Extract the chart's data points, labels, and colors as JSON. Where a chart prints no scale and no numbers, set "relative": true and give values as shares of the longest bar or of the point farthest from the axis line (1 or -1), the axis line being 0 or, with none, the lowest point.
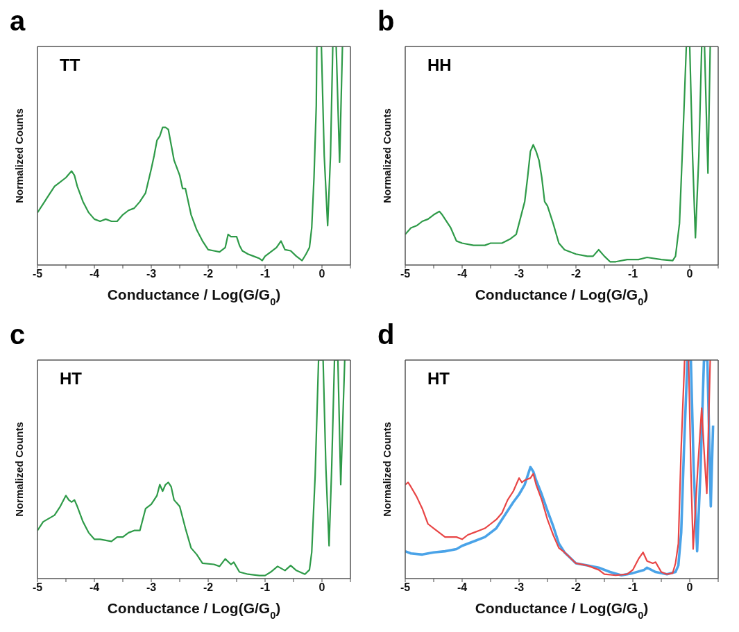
{
  "chart_data": [
    {
      "type": "line",
      "title": "TT",
      "annotations": [
        "a"
      ],
      "xlabel": "Conductance / Log(G/G$_{0}$)",
      "ylabel": "Normalized Counts",
      "relative": true,
      "marker": "none",
      "line_style": "solid",
      "xlim": [
        -5,
        0.5
      ],
      "xticks": [
        -5,
        {
          "value": -4.5,
          "label": null
        },
        -4,
        {
          "value": -3.5,
          "label": null
        },
        -3,
        {
          "value": -2.5,
          "label": null
        },
        -2,
        {
          "value": -1.5,
          "label": null
        },
        -1,
        {
          "value": -0.5,
          "label": null
        },
        0,
        {
          "value": 0.5,
          "label": null
        }
      ],
      "series": [
        {
          "color": "#2e9a48",
          "x": [
            -5,
            -4.9,
            -4.8,
            -4.7,
            -4.6,
            -4.5,
            -4.4,
            -4.35,
            -4.3,
            -4.2,
            -4.1,
            -4.0,
            -3.9,
            -3.8,
            -3.7,
            -3.6,
            -3.5,
            -3.4,
            -3.3,
            -3.2,
            -3.1,
            -3.0,
            -2.95,
            -2.9,
            -2.85,
            -2.8,
            -2.75,
            -2.7,
            -2.65,
            -2.6,
            -2.5,
            -2.45,
            -2.4,
            -2.3,
            -2.2,
            -2.1,
            -2.0,
            -1.9,
            -1.8,
            -1.7,
            -1.65,
            -1.6,
            -1.5,
            -1.45,
            -1.4,
            -1.3,
            -1.2,
            -1.1,
            -1.05,
            -1.0,
            -0.9,
            -0.8,
            -0.72,
            -0.65,
            -0.55,
            -0.45,
            -0.35,
            -0.28,
            -0.22,
            -0.18,
            -0.14,
            -0.1,
            -0.09,
            -0.01,
            0.04,
            0.1,
            0.15,
            0.19,
            0.25,
            0.31,
            0.36
          ],
          "values": [
            0.24,
            0.28,
            0.32,
            0.36,
            0.38,
            0.4,
            0.43,
            0.41,
            0.36,
            0.29,
            0.24,
            0.21,
            0.2,
            0.21,
            0.2,
            0.2,
            0.23,
            0.25,
            0.26,
            0.29,
            0.33,
            0.44,
            0.5,
            0.57,
            0.59,
            0.63,
            0.63,
            0.62,
            0.55,
            0.48,
            0.41,
            0.35,
            0.35,
            0.23,
            0.16,
            0.11,
            0.07,
            0.065,
            0.06,
            0.08,
            0.14,
            0.13,
            0.13,
            0.09,
            0.065,
            0.05,
            0.04,
            0.03,
            0.02,
            0.04,
            0.06,
            0.08,
            0.11,
            0.07,
            0.065,
            0.04,
            0.02,
            0.05,
            0.08,
            0.17,
            0.4,
            0.73,
            1,
            1,
            0.5,
            0.18,
            0.5,
            1,
            1,
            0.47,
            1
          ]
        }
      ]
    },
    {
      "type": "line",
      "title": "HH",
      "annotations": [
        "b"
      ],
      "xlabel": "Conductance / Log(G/G$_{0}$)",
      "ylabel": "Normalized Counts",
      "relative": true,
      "marker": "none",
      "line_style": "solid",
      "xlim": [
        -5,
        0.5
      ],
      "xticks": [
        -5,
        {
          "value": -4.5,
          "label": null
        },
        -4,
        {
          "value": -3.5,
          "label": null
        },
        -3,
        {
          "value": -2.5,
          "label": null
        },
        -2,
        {
          "value": -1.5,
          "label": null
        },
        -1,
        {
          "value": -0.5,
          "label": null
        },
        0,
        {
          "value": 0.5,
          "label": null
        }
      ],
      "series": [
        {
          "color": "#2e9a48",
          "x": [
            -5,
            -4.9,
            -4.8,
            -4.7,
            -4.6,
            -4.5,
            -4.4,
            -4.35,
            -4.3,
            -4.2,
            -4.1,
            -4.0,
            -3.8,
            -3.6,
            -3.5,
            -3.3,
            -3.15,
            -3.05,
            -2.95,
            -2.9,
            -2.85,
            -2.8,
            -2.75,
            -2.7,
            -2.65,
            -2.6,
            -2.55,
            -2.5,
            -2.4,
            -2.3,
            -2.2,
            -2.0,
            -1.8,
            -1.7,
            -1.6,
            -1.5,
            -1.4,
            -1.3,
            -1.1,
            -0.9,
            -0.75,
            -0.5,
            -0.3,
            -0.25,
            -0.18,
            -0.12,
            -0.06,
            0.0,
            0.05,
            0.1,
            0.16,
            0.21,
            0.26,
            0.32,
            0.36
          ],
          "values": [
            0.14,
            0.17,
            0.18,
            0.2,
            0.21,
            0.23,
            0.245,
            0.23,
            0.21,
            0.17,
            0.11,
            0.1,
            0.09,
            0.09,
            0.1,
            0.1,
            0.12,
            0.14,
            0.24,
            0.29,
            0.4,
            0.52,
            0.55,
            0.52,
            0.48,
            0.4,
            0.29,
            0.27,
            0.19,
            0.1,
            0.07,
            0.05,
            0.04,
            0.04,
            0.07,
            0.04,
            0.015,
            0.015,
            0.025,
            0.025,
            0.035,
            0.025,
            0.02,
            0.04,
            0.19,
            0.58,
            1,
            1,
            0.5,
            0.125,
            0.5,
            1,
            1,
            0.42,
            1
          ]
        }
      ]
    },
    {
      "type": "line",
      "title": "HT",
      "annotations": [
        "c"
      ],
      "xlabel": "Conductance / Log(G/G$_{0}$)",
      "ylabel": "Normalized Counts",
      "relative": true,
      "marker": "none",
      "line_style": "solid",
      "xlim": [
        -5,
        0.5
      ],
      "xticks": [
        -5,
        {
          "value": -4.5,
          "label": null
        },
        -4,
        {
          "value": -3.5,
          "label": null
        },
        -3,
        {
          "value": -2.5,
          "label": null
        },
        -2,
        {
          "value": -1.5,
          "label": null
        },
        -1,
        {
          "value": -0.5,
          "label": null
        },
        0,
        {
          "value": 0.5,
          "label": null
        }
      ],
      "series": [
        {
          "color": "#2e9a48",
          "x": [
            -5,
            -4.9,
            -4.8,
            -4.7,
            -4.6,
            -4.5,
            -4.45,
            -4.4,
            -4.35,
            -4.3,
            -4.2,
            -4.1,
            -4.0,
            -3.9,
            -3.7,
            -3.6,
            -3.5,
            -3.4,
            -3.3,
            -3.2,
            -3.1,
            -3.0,
            -2.95,
            -2.9,
            -2.85,
            -2.8,
            -2.75,
            -2.7,
            -2.65,
            -2.6,
            -2.5,
            -2.4,
            -2.3,
            -2.2,
            -2.1,
            -1.9,
            -1.8,
            -1.7,
            -1.6,
            -1.55,
            -1.45,
            -1.3,
            -1.1,
            -1.0,
            -0.9,
            -0.78,
            -0.65,
            -0.55,
            -0.45,
            -0.3,
            -0.22,
            -0.18,
            -0.12,
            -0.06,
            0.02,
            0.07,
            0.125,
            0.17,
            0.22,
            0.28,
            0.33,
            0.4
          ],
          "values": [
            0.22,
            0.26,
            0.275,
            0.29,
            0.33,
            0.38,
            0.36,
            0.35,
            0.36,
            0.33,
            0.26,
            0.21,
            0.18,
            0.18,
            0.17,
            0.19,
            0.19,
            0.21,
            0.22,
            0.22,
            0.32,
            0.34,
            0.36,
            0.38,
            0.43,
            0.4,
            0.43,
            0.44,
            0.42,
            0.36,
            0.33,
            0.23,
            0.14,
            0.11,
            0.07,
            0.065,
            0.056,
            0.09,
            0.065,
            0.075,
            0.03,
            0.02,
            0.014,
            0.014,
            0.03,
            0.056,
            0.037,
            0.06,
            0.037,
            0.02,
            0.04,
            0.12,
            0.47,
            1,
            1,
            0.5,
            0.15,
            0.5,
            1,
            1,
            0.43,
            1
          ]
        }
      ]
    },
    {
      "type": "line",
      "title": "HT",
      "annotations": [
        "d"
      ],
      "xlabel": "Conductance / Log(G/G$_{0}$)",
      "ylabel": "Normalized Counts",
      "relative": true,
      "marker": "none",
      "line_style": "solid",
      "xlim": [
        -5,
        0.5
      ],
      "xticks": [
        -5,
        {
          "value": -4.5,
          "label": null
        },
        -4,
        {
          "value": -3.5,
          "label": null
        },
        -3,
        {
          "value": -2.5,
          "label": null
        },
        -2,
        {
          "value": -1.5,
          "label": null
        },
        -1,
        {
          "value": -0.5,
          "label": null
        },
        0,
        {
          "value": 0.5,
          "label": null
        }
      ],
      "series": [
        {
          "color": "#e84545",
          "x": [
            -5,
            -4.95,
            -4.9,
            -4.8,
            -4.7,
            -4.6,
            -4.5,
            -4.4,
            -4.3,
            -4.2,
            -4.1,
            -4.0,
            -3.9,
            -3.8,
            -3.7,
            -3.6,
            -3.5,
            -3.4,
            -3.3,
            -3.2,
            -3.1,
            -3.0,
            -2.95,
            -2.9,
            -2.8,
            -2.75,
            -2.7,
            -2.6,
            -2.5,
            -2.4,
            -2.3,
            -2.2,
            -2.0,
            -1.8,
            -1.6,
            -1.5,
            -1.3,
            -1.1,
            -1.0,
            -0.9,
            -0.82,
            -0.75,
            -0.65,
            -0.6,
            -0.5,
            -0.4,
            -0.3,
            -0.25,
            -0.2,
            -0.15,
            -0.09,
            -0.02,
            0.02,
            0.06,
            0.14,
            0.21,
            0.26,
            0.3,
            0.36
          ],
          "values": [
            0.43,
            0.44,
            0.42,
            0.375,
            0.32,
            0.25,
            0.23,
            0.21,
            0.19,
            0.19,
            0.19,
            0.18,
            0.2,
            0.21,
            0.22,
            0.23,
            0.25,
            0.27,
            0.3,
            0.36,
            0.4,
            0.46,
            0.44,
            0.45,
            0.46,
            0.48,
            0.43,
            0.36,
            0.27,
            0.2,
            0.14,
            0.12,
            0.07,
            0.06,
            0.04,
            0.02,
            0.015,
            0.02,
            0.04,
            0.09,
            0.12,
            0.08,
            0.07,
            0.075,
            0.03,
            0.02,
            0.025,
            0.07,
            0.16,
            0.6,
            1,
            1,
            0.5,
            0.135,
            0.5,
            0.78,
            0.55,
            0.39,
            1
          ]
        },
        {
          "color": "#4aa3e8",
          "x": [
            -5,
            -4.9,
            -4.7,
            -4.5,
            -4.3,
            -4.1,
            -4.0,
            -3.8,
            -3.6,
            -3.4,
            -3.2,
            -3.1,
            -3.0,
            -2.9,
            -2.8,
            -2.75,
            -2.7,
            -2.6,
            -2.5,
            -2.4,
            -2.3,
            -2.2,
            -2.0,
            -1.8,
            -1.6,
            -1.4,
            -1.2,
            -1.0,
            -0.8,
            -0.75,
            -0.6,
            -0.4,
            -0.25,
            -0.2,
            -0.15,
            -0.1,
            -0.04,
            0.02,
            0.07,
            0.13,
            0.19,
            0.25,
            0.31,
            0.37,
            0.41
          ],
          "values": [
            0.125,
            0.115,
            0.11,
            0.12,
            0.125,
            0.135,
            0.15,
            0.17,
            0.19,
            0.23,
            0.31,
            0.35,
            0.385,
            0.43,
            0.51,
            0.49,
            0.45,
            0.385,
            0.31,
            0.24,
            0.16,
            0.12,
            0.07,
            0.06,
            0.05,
            0.03,
            0.015,
            0.025,
            0.04,
            0.05,
            0.03,
            0.02,
            0.03,
            0.06,
            0.21,
            0.6,
            1,
            1,
            0.5,
            0.125,
            0.5,
            1,
            1,
            0.33,
            0.7
          ]
        }
      ]
    }
  ]
}
